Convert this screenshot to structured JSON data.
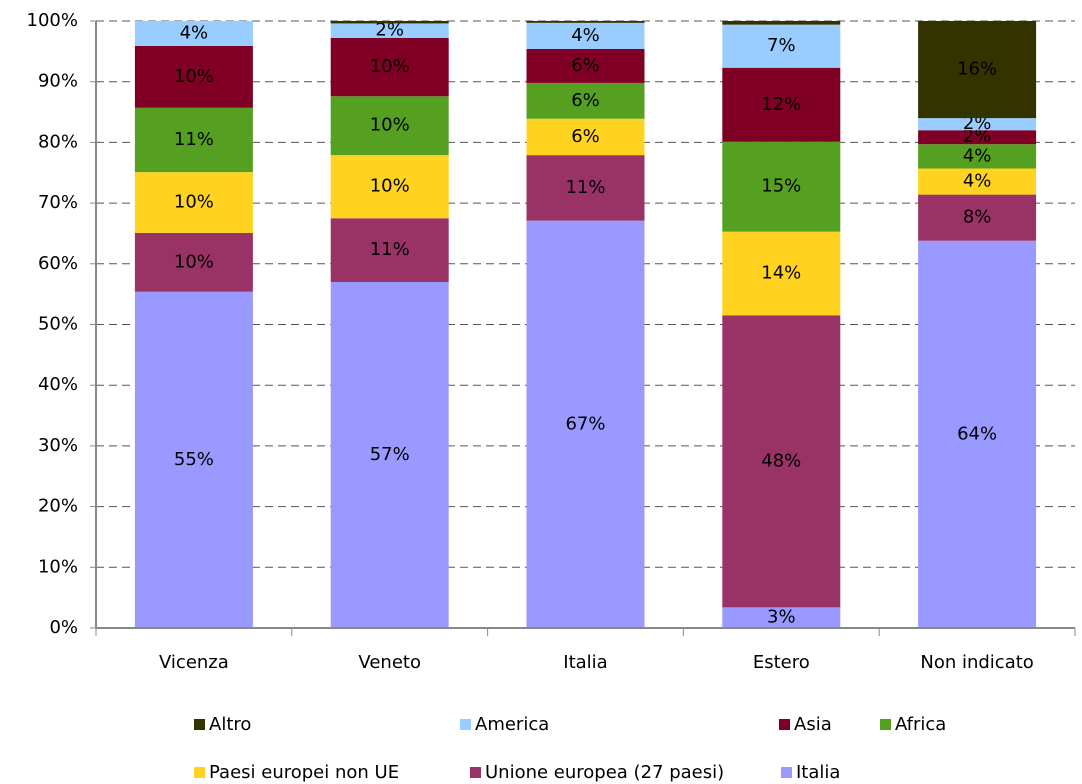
{
  "chart_data": {
    "type": "stacked_bar",
    "categories": [
      "Vicenza",
      "Veneto",
      "Italia",
      "Estero",
      "Non indicato"
    ],
    "series": [
      {
        "name": "Italia",
        "color": "#9999ff",
        "values": [
          55.4,
          57.0,
          67.1,
          3.4,
          63.8
        ],
        "value_labels": [
          "55%",
          "57%",
          "67%",
          "3%",
          "64%"
        ]
      },
      {
        "name": "Unione europea (27 paesi)",
        "color": "#993366",
        "values": [
          9.7,
          10.5,
          10.8,
          48.1,
          7.6
        ],
        "value_labels": [
          "10%",
          "11%",
          "11%",
          "48%",
          "8%"
        ]
      },
      {
        "name": "Paesi europei non UE",
        "color": "#ffd320",
        "values": [
          10.0,
          10.4,
          6.0,
          13.8,
          4.3
        ],
        "value_labels": [
          "10%",
          "10%",
          "6%",
          "14%",
          "4%"
        ]
      },
      {
        "name": "Africa",
        "color": "#55a020",
        "values": [
          10.6,
          9.7,
          5.9,
          14.8,
          4.0
        ],
        "value_labels": [
          "11%",
          "10%",
          "6%",
          "15%",
          "4%"
        ]
      },
      {
        "name": "Asia",
        "color": "#800025",
        "values": [
          10.2,
          9.6,
          5.6,
          12.2,
          2.3
        ],
        "value_labels": [
          "10%",
          "10%",
          "6%",
          "12%",
          "2%"
        ]
      },
      {
        "name": "America",
        "color": "#99ccff",
        "values": [
          4.1,
          2.4,
          4.3,
          7.1,
          2.0
        ],
        "value_labels": [
          "4%",
          "2%",
          "4%",
          "7%",
          "2%"
        ]
      },
      {
        "name": "Altro",
        "color": "#333300",
        "values": [
          0,
          0.4,
          0.3,
          0.6,
          16.0
        ],
        "value_labels": [
          null,
          null,
          null,
          null,
          "16%"
        ]
      }
    ],
    "ylim": [
      0,
      100
    ],
    "yticks": [
      {
        "value": 0,
        "label": "0%"
      },
      {
        "value": 10,
        "label": "10%"
      },
      {
        "value": 20,
        "label": "20%"
      },
      {
        "value": 30,
        "label": "30%"
      },
      {
        "value": 40,
        "label": "40%"
      },
      {
        "value": 50,
        "label": "50%"
      },
      {
        "value": 60,
        "label": "60%"
      },
      {
        "value": 70,
        "label": "70%"
      },
      {
        "value": 80,
        "label": "80%"
      },
      {
        "value": 90,
        "label": "90%"
      },
      {
        "value": 100,
        "label": "100%"
      }
    ],
    "grid": true
  }
}
